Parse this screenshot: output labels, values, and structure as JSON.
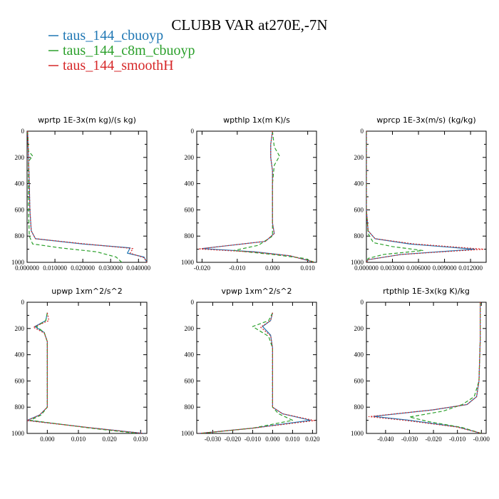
{
  "title": "CLUBB VAR at270E,-7N",
  "legend": [
    {
      "label": "taus_144_cbuoyp",
      "color": "#1f77b4",
      "dash": "solid"
    },
    {
      "label": "taus_144_c8m_cbuoyp",
      "color": "#2ca02c",
      "dash": "dashed"
    },
    {
      "label": "taus_144_smoothH",
      "color": "#d62728",
      "dash": "dotted"
    }
  ],
  "chart_data": [
    {
      "type": "line",
      "title": "wprtp  1E-3x(m kg)/(s kg)",
      "xlim": [
        0,
        0.043
      ],
      "ylim": [
        1000,
        0
      ],
      "yticks": [
        0,
        200,
        400,
        600,
        800,
        1000
      ],
      "xticks": [
        0,
        0.01,
        0.02,
        0.03,
        0.04
      ],
      "xtick_labels": [
        "0.000000",
        "0.010000",
        "0.020000",
        "0.030000",
        "0.040000"
      ],
      "series": [
        {
          "name": "taus_144_cbuoyp",
          "points": [
            [
              0.0002,
              0
            ],
            [
              0.0005,
              200
            ],
            [
              0.0008,
              400
            ],
            [
              0.001,
              600
            ],
            [
              0.0015,
              760
            ],
            [
              0.003,
              820
            ],
            [
              0.02,
              860
            ],
            [
              0.037,
              890
            ],
            [
              0.036,
              930
            ],
            [
              0.042,
              960
            ],
            [
              0.043,
              1000
            ]
          ]
        },
        {
          "name": "taus_144_c8m_cbuoyp",
          "points": [
            [
              0.0002,
              0
            ],
            [
              0.0005,
              150
            ],
            [
              0.002,
              190
            ],
            [
              0.0005,
              230
            ],
            [
              0.0005,
              400
            ],
            [
              0.0005,
              600
            ],
            [
              0.0008,
              800
            ],
            [
              0.002,
              860
            ],
            [
              0.012,
              890
            ],
            [
              0.025,
              920
            ],
            [
              0.032,
              960
            ],
            [
              0.034,
              1000
            ]
          ]
        },
        {
          "name": "taus_144_smoothH",
          "points": [
            [
              0.0002,
              0
            ],
            [
              0.0005,
              200
            ],
            [
              0.0008,
              400
            ],
            [
              0.001,
              600
            ],
            [
              0.0015,
              760
            ],
            [
              0.003,
              820
            ],
            [
              0.021,
              860
            ],
            [
              0.038,
              895
            ],
            [
              0.037,
              930
            ],
            [
              0.042,
              965
            ],
            [
              0.043,
              1000
            ]
          ]
        }
      ]
    },
    {
      "type": "line",
      "title": "wpthlp  1x(m K)/s",
      "xlim": [
        -0.0215,
        0.0125
      ],
      "ylim": [
        1000,
        0
      ],
      "yticks": [
        0,
        200,
        400,
        600,
        800,
        1000
      ],
      "xticks": [
        -0.02,
        -0.01,
        0,
        0.01
      ],
      "xtick_labels": [
        "-0.020",
        "-0.010",
        "0.000",
        "0.010"
      ],
      "series": [
        {
          "name": "taus_144_cbuoyp",
          "points": [
            [
              0,
              0
            ],
            [
              -0.0005,
              100
            ],
            [
              -0.0005,
              200
            ],
            [
              0,
              300
            ],
            [
              0,
              500
            ],
            [
              0,
              700
            ],
            [
              0.0005,
              780
            ],
            [
              -0.002,
              840
            ],
            [
              -0.02,
              895
            ],
            [
              -0.005,
              920
            ],
            [
              0.005,
              950
            ],
            [
              0.012,
              1000
            ]
          ]
        },
        {
          "name": "taus_144_c8m_cbuoyp",
          "points": [
            [
              0,
              0
            ],
            [
              0.0005,
              120
            ],
            [
              0.002,
              190
            ],
            [
              0.0005,
              260
            ],
            [
              0,
              400
            ],
            [
              0,
              600
            ],
            [
              0,
              800
            ],
            [
              -0.004,
              870
            ],
            [
              -0.011,
              910
            ],
            [
              0.0,
              940
            ],
            [
              0.009,
              970
            ],
            [
              0.012,
              1000
            ]
          ]
        },
        {
          "name": "taus_144_smoothH",
          "points": [
            [
              0,
              0
            ],
            [
              -0.0005,
              100
            ],
            [
              -0.0005,
              200
            ],
            [
              0,
              300
            ],
            [
              0,
              500
            ],
            [
              0,
              700
            ],
            [
              0.0005,
              780
            ],
            [
              -0.002,
              840
            ],
            [
              -0.021,
              898
            ],
            [
              -0.005,
              922
            ],
            [
              0.005,
              950
            ],
            [
              0.012,
              1000
            ]
          ]
        }
      ]
    },
    {
      "type": "line",
      "title": "wprcp  1E-3x(m/s) (kg/kg)",
      "xlim": [
        0,
        0.0138
      ],
      "ylim": [
        1000,
        0
      ],
      "yticks": [
        0,
        200,
        400,
        600,
        800,
        1000
      ],
      "xticks": [
        0,
        0.003,
        0.006,
        0.009,
        0.012
      ],
      "xtick_labels": [
        "0.000000",
        "0.003000",
        "0.006000",
        "0.009000",
        "0.012000"
      ],
      "series": [
        {
          "name": "taus_144_cbuoyp",
          "points": [
            [
              0,
              0
            ],
            [
              0,
              600
            ],
            [
              0.0002,
              760
            ],
            [
              0.001,
              820
            ],
            [
              0.005,
              860
            ],
            [
              0.0125,
              900
            ],
            [
              0.004,
              940
            ],
            [
              0.0002,
              980
            ],
            [
              0,
              1000
            ]
          ]
        },
        {
          "name": "taus_144_c8m_cbuoyp",
          "points": [
            [
              0,
              0
            ],
            [
              0,
              600
            ],
            [
              0.0002,
              780
            ],
            [
              0.0008,
              850
            ],
            [
              0.003,
              880
            ],
            [
              0.0065,
              910
            ],
            [
              0.002,
              940
            ],
            [
              0.0002,
              970
            ],
            [
              0,
              1000
            ]
          ]
        },
        {
          "name": "taus_144_smoothH",
          "points": [
            [
              0,
              0
            ],
            [
              0,
              600
            ],
            [
              0.0002,
              760
            ],
            [
              0.001,
              820
            ],
            [
              0.0055,
              860
            ],
            [
              0.0135,
              900
            ],
            [
              0.004,
              940
            ],
            [
              0.0002,
              980
            ],
            [
              0,
              1000
            ]
          ]
        }
      ]
    },
    {
      "type": "line",
      "title": "upwp  1xm^2/s^2",
      "xlim": [
        -0.0065,
        0.032
      ],
      "ylim": [
        1000,
        0
      ],
      "yticks": [
        0,
        200,
        400,
        600,
        800,
        1000
      ],
      "xticks": [
        0,
        0.01,
        0.02,
        0.03
      ],
      "xtick_labels": [
        "0.000",
        "0.010",
        "0.020",
        "0.030"
      ],
      "series": [
        {
          "name": "taus_144_cbuoyp",
          "points": [
            [
              0,
              80
            ],
            [
              -0.0005,
              140
            ],
            [
              -0.004,
              185
            ],
            [
              -0.001,
              230
            ],
            [
              0,
              300
            ],
            [
              0,
              500
            ],
            [
              0,
              700
            ],
            [
              0,
              800
            ],
            [
              -0.0025,
              860
            ],
            [
              -0.0065,
              900
            ],
            [
              0.015,
              960
            ],
            [
              0.031,
              1000
            ]
          ]
        },
        {
          "name": "taus_144_c8m_cbuoyp",
          "points": [
            [
              0,
              80
            ],
            [
              -0.0005,
              140
            ],
            [
              -0.0035,
              185
            ],
            [
              -0.001,
              230
            ],
            [
              0,
              300
            ],
            [
              0,
              500
            ],
            [
              0,
              700
            ],
            [
              0,
              800
            ],
            [
              -0.002,
              860
            ],
            [
              -0.0055,
              900
            ],
            [
              0.014,
              960
            ],
            [
              0.029,
              1000
            ]
          ]
        },
        {
          "name": "taus_144_smoothH",
          "points": [
            [
              0,
              80
            ],
            [
              0.0005,
              140
            ],
            [
              -0.0045,
              190
            ],
            [
              -0.001,
              235
            ],
            [
              0,
              300
            ],
            [
              0,
              500
            ],
            [
              0,
              700
            ],
            [
              0,
              800
            ],
            [
              -0.0025,
              860
            ],
            [
              -0.0065,
              902
            ],
            [
              0.015,
              960
            ],
            [
              0.031,
              1000
            ]
          ]
        }
      ]
    },
    {
      "type": "line",
      "title": "vpwp  1xm^2/s^2",
      "xlim": [
        -0.038,
        0.022
      ],
      "ylim": [
        1000,
        0
      ],
      "yticks": [
        0,
        200,
        400,
        600,
        800,
        1000
      ],
      "xticks": [
        -0.03,
        -0.02,
        -0.01,
        0,
        0.01,
        0.02
      ],
      "xtick_labels": [
        "-0.030",
        "-0.020",
        "-0.010",
        "0.000",
        "0.010",
        "0.020"
      ],
      "series": [
        {
          "name": "taus_144_cbuoyp",
          "points": [
            [
              0,
              80
            ],
            [
              -0.001,
              140
            ],
            [
              -0.005,
              185
            ],
            [
              -0.001,
              250
            ],
            [
              0,
              350
            ],
            [
              0,
              500
            ],
            [
              0,
              700
            ],
            [
              0,
              800
            ],
            [
              0.005,
              850
            ],
            [
              0.019,
              900
            ],
            [
              -0.01,
              960
            ],
            [
              -0.037,
              1000
            ]
          ]
        },
        {
          "name": "taus_144_c8m_cbuoyp",
          "points": [
            [
              0,
              80
            ],
            [
              -0.002,
              140
            ],
            [
              -0.01,
              185
            ],
            [
              -0.002,
              260
            ],
            [
              0,
              350
            ],
            [
              0,
              500
            ],
            [
              0,
              700
            ],
            [
              0,
              800
            ],
            [
              0.003,
              850
            ],
            [
              0.01,
              900
            ],
            [
              -0.01,
              960
            ],
            [
              -0.036,
              1000
            ]
          ]
        },
        {
          "name": "taus_144_smoothH",
          "points": [
            [
              0,
              80
            ],
            [
              -0.001,
              140
            ],
            [
              -0.006,
              190
            ],
            [
              -0.001,
              255
            ],
            [
              0,
              350
            ],
            [
              0,
              500
            ],
            [
              0,
              700
            ],
            [
              0,
              800
            ],
            [
              0.005,
              850
            ],
            [
              0.021,
              902
            ],
            [
              -0.01,
              960
            ],
            [
              -0.037,
              1000
            ]
          ]
        }
      ]
    },
    {
      "type": "line",
      "title": "rtpthlp  1E-3x(kg K)/kg",
      "xlim": [
        -0.048,
        0.002
      ],
      "ylim": [
        1000,
        0
      ],
      "yticks": [
        0,
        200,
        400,
        600,
        800,
        1000
      ],
      "xticks": [
        -0.04,
        -0.03,
        -0.02,
        -0.01,
        0
      ],
      "xtick_labels": [
        "-0.040",
        "-0.030",
        "-0.020",
        "-0.010",
        "-0.000"
      ],
      "series": [
        {
          "name": "taus_144_cbuoyp",
          "points": [
            [
              -0.0005,
              0
            ],
            [
              -0.0005,
              300
            ],
            [
              -0.001,
              600
            ],
            [
              -0.002,
              720
            ],
            [
              -0.006,
              780
            ],
            [
              -0.02,
              820
            ],
            [
              -0.045,
              870
            ],
            [
              -0.03,
              900
            ],
            [
              -0.01,
              950
            ],
            [
              0,
              1000
            ]
          ]
        },
        {
          "name": "taus_144_c8m_cbuoyp",
          "points": [
            [
              -0.0005,
              0
            ],
            [
              -0.0005,
              300
            ],
            [
              -0.001,
              600
            ],
            [
              -0.003,
              720
            ],
            [
              -0.008,
              780
            ],
            [
              -0.016,
              830
            ],
            [
              -0.03,
              875
            ],
            [
              -0.022,
              910
            ],
            [
              -0.008,
              955
            ],
            [
              0,
              1000
            ]
          ]
        },
        {
          "name": "taus_144_smoothH",
          "points": [
            [
              -0.0005,
              0
            ],
            [
              -0.0005,
              300
            ],
            [
              -0.001,
              600
            ],
            [
              -0.002,
              720
            ],
            [
              -0.006,
              780
            ],
            [
              -0.021,
              822
            ],
            [
              -0.047,
              872
            ],
            [
              -0.031,
              902
            ],
            [
              -0.01,
              952
            ],
            [
              0,
              1000
            ]
          ]
        }
      ]
    }
  ]
}
